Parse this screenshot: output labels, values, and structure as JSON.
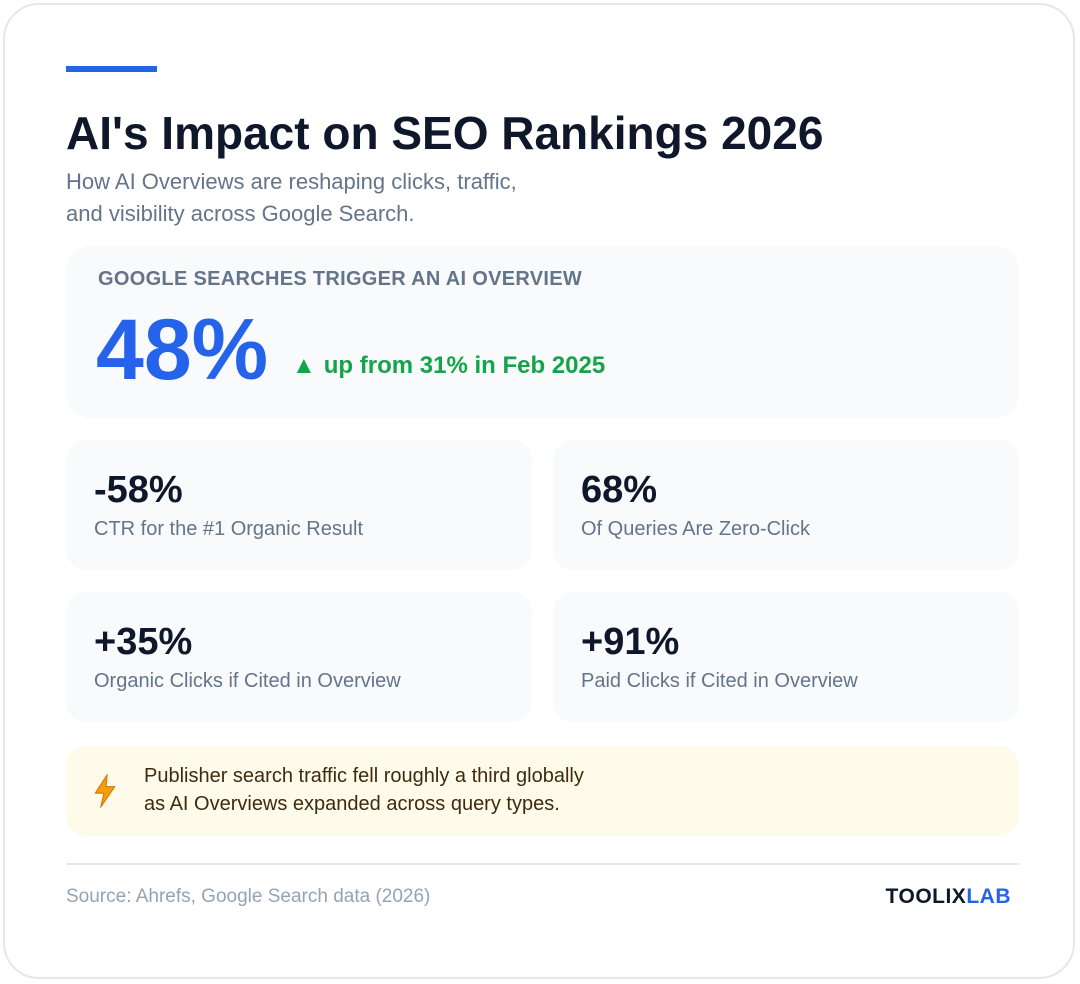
{
  "header": {
    "title": "AI's Impact on SEO Rankings 2026",
    "subtitle_line1": "How AI Overviews are reshaping clicks, traffic,",
    "subtitle_line2": "and visibility across Google Search."
  },
  "hero": {
    "label": "GOOGLE SEARCHES TRIGGER AN AI OVERVIEW",
    "value": "48%",
    "change_arrow": "▲",
    "change_text": "up from 31% in Feb 2025"
  },
  "stats": [
    {
      "value": "-58%",
      "label": "CTR for the #1 Organic Result"
    },
    {
      "value": "68%",
      "label": "Of Queries Are Zero-Click"
    },
    {
      "value": "+35%",
      "label": "Organic Clicks if Cited in Overview"
    },
    {
      "value": "+91%",
      "label": "Paid Clicks if Cited in Overview"
    }
  ],
  "note": {
    "icon": "lightning-icon",
    "line1": "Publisher search traffic fell roughly a third globally",
    "line2": "as AI Overviews expanded across query types."
  },
  "footer": {
    "source": "Source: Ahrefs, Google Search data (2026)",
    "brand_part1": "TOOLIX",
    "brand_part2": "LAB"
  },
  "colors": {
    "accent": "#2563eb",
    "positive": "#16a34a",
    "note_bg": "#fefbea",
    "lightning": "#f59e0b"
  }
}
